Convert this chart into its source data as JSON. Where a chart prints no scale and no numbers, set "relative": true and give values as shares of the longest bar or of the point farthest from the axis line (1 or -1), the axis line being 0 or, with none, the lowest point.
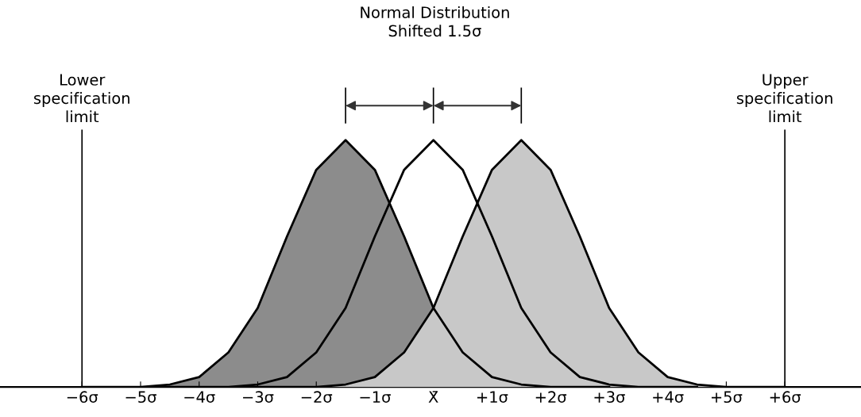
{
  "chart_data": {
    "type": "area",
    "title": "Normal Distribution\nShifted 1.5σ",
    "relative": true,
    "grid": false,
    "legend": false,
    "xlim": [
      -7.4,
      7.3
    ],
    "xticks": [
      {
        "value": -6,
        "label": "−6σ"
      },
      {
        "value": -5,
        "label": "−5σ"
      },
      {
        "value": -4,
        "label": "−4σ"
      },
      {
        "value": -3,
        "label": "−3σ"
      },
      {
        "value": -2,
        "label": "−2σ"
      },
      {
        "value": -1,
        "label": "−1σ"
      },
      {
        "value": 0,
        "label": "X̄"
      },
      {
        "value": 1,
        "label": "+1σ"
      },
      {
        "value": 2,
        "label": "+2σ"
      },
      {
        "value": 3,
        "label": "+3σ"
      },
      {
        "value": 4,
        "label": "+4σ"
      },
      {
        "value": 5,
        "label": "+5σ"
      },
      {
        "value": 6,
        "label": "+6σ"
      }
    ],
    "series": [
      {
        "color": "#8c8c8c",
        "x": [
          -6,
          -5.5,
          -5,
          -4.5,
          -4,
          -3.5,
          -3,
          -2.5,
          -2,
          -1.5,
          -1,
          -0.5,
          0,
          0.5,
          1,
          1.5,
          2,
          2.5,
          3
        ],
        "values": [
          0,
          0,
          0,
          0.01,
          0.04,
          0.14,
          0.32,
          0.61,
          0.88,
          1,
          0.88,
          0.61,
          0.32,
          0.14,
          0.04,
          0.01,
          0,
          0,
          0
        ]
      },
      {
        "type": "line",
        "color": "#000000",
        "x": [
          -4.5,
          -4,
          -3.5,
          -3,
          -2.5,
          -2,
          -1.5,
          -1,
          -0.5,
          0,
          0.5,
          1,
          1.5,
          2,
          2.5,
          3,
          3.5,
          4,
          4.5
        ],
        "values": [
          0,
          0,
          0,
          0.01,
          0.04,
          0.14,
          0.32,
          0.61,
          0.88,
          1,
          0.88,
          0.61,
          0.32,
          0.14,
          0.04,
          0.01,
          0,
          0,
          0
        ]
      },
      {
        "color": "#c8c8c8",
        "x": [
          -3,
          -2.5,
          -2,
          -1.5,
          -1,
          -0.5,
          0,
          0.5,
          1,
          1.5,
          2,
          2.5,
          3,
          3.5,
          4,
          4.5,
          5,
          5.5,
          6
        ],
        "values": [
          0,
          0,
          0,
          0.01,
          0.04,
          0.14,
          0.32,
          0.61,
          0.88,
          1,
          0.88,
          0.61,
          0.32,
          0.14,
          0.04,
          0.01,
          0,
          0,
          0
        ]
      }
    ],
    "ref_lines": [
      {
        "axis": "x",
        "value": -6,
        "label": "Lower\nspecification\nlimit",
        "color": "#000000"
      },
      {
        "axis": "x",
        "value": 6,
        "label": "Upper\nspecification\nlimit",
        "color": "#000000"
      }
    ]
  }
}
